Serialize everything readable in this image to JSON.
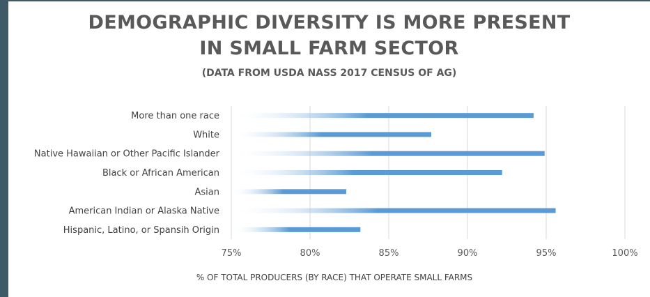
{
  "chart_data": {
    "type": "bar",
    "orientation": "horizontal",
    "title": "DEMOGRAPHIC DIVERSITY IS MORE PRESENT IN SMALL FARM SECTOR",
    "title_lines": [
      "DEMOGRAPHIC DIVERSITY IS MORE PRESENT",
      "IN SMALL FARM SECTOR"
    ],
    "subtitle": "(DATA FROM USDA NASS 2017 CENSUS OF AG)",
    "xlabel": "% OF TOTAL PRODUCERS (BY RACE) THAT OPERATE SMALL FARMS",
    "ylabel": "",
    "categories": [
      "More than one race",
      "White",
      "Native Hawaiian or Other Pacific Islander",
      "Black or African American",
      "Asian",
      "American Indian or Alaska Native",
      "Hispanic, Latino, or Spansih Origin"
    ],
    "values": [
      94.2,
      87.7,
      94.9,
      92.2,
      82.3,
      95.6,
      83.2
    ],
    "xlim": [
      75,
      100
    ],
    "ticks": [
      75,
      80,
      85,
      90,
      95,
      100
    ],
    "tick_labels": [
      "75%",
      "80%",
      "85%",
      "90%",
      "95%",
      "100%"
    ],
    "grid": "vertical",
    "legend": "none",
    "bar_color": "#5b9bd5"
  }
}
